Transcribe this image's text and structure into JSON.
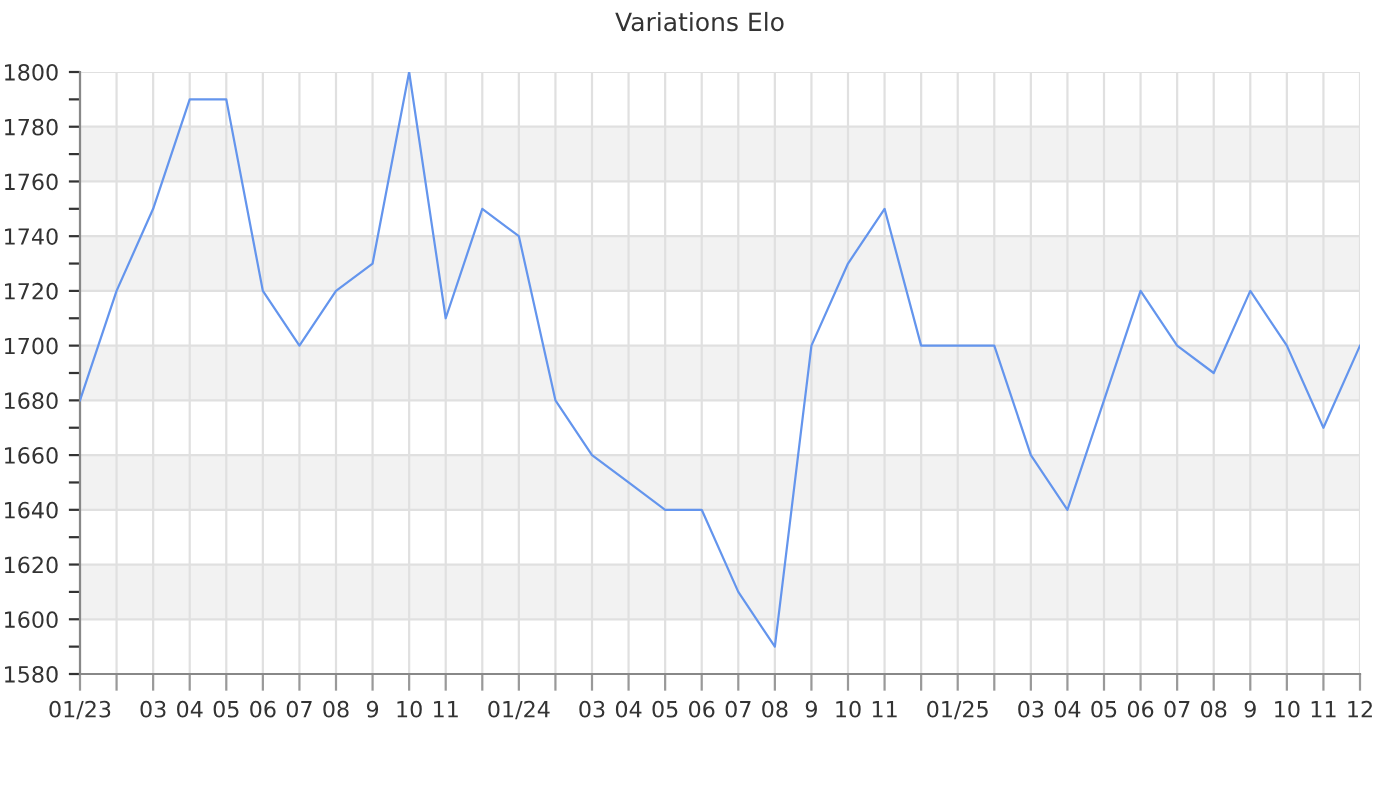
{
  "chart_data": {
    "type": "line",
    "title": "Variations Elo",
    "categories": [
      "01/23",
      null,
      "03",
      "04",
      "05",
      "06",
      "07",
      "08",
      "9",
      "10",
      "11",
      null,
      "01/24",
      null,
      "03",
      "04",
      "05",
      "06",
      "07",
      "08",
      "9",
      "10",
      "11",
      null,
      "01/25",
      null,
      "03",
      "04",
      "05",
      "06",
      "07",
      "08",
      "9",
      "10",
      "11",
      "12"
    ],
    "series": [
      {
        "color": "#6495ed",
        "values": [
          1680,
          1720,
          1750,
          1790,
          1790,
          1720,
          1700,
          1720,
          1730,
          1800,
          1710,
          1750,
          1740,
          1680,
          1660,
          1650,
          1640,
          1640,
          1610,
          1590,
          1700,
          1730,
          1750,
          1700,
          1700,
          1700,
          1660,
          1640,
          1680,
          1720,
          1700,
          1690,
          1720,
          1700,
          1670,
          1700
        ]
      }
    ],
    "ylim": [
      1580,
      1800
    ],
    "yticks": [
      1580,
      {
        "value": 1590,
        "label": null
      },
      1600,
      {
        "value": 1610,
        "label": null
      },
      1620,
      {
        "value": 1630,
        "label": null
      },
      1640,
      {
        "value": 1650,
        "label": null
      },
      1660,
      {
        "value": 1670,
        "label": null
      },
      1680,
      {
        "value": 1690,
        "label": null
      },
      1700,
      {
        "value": 1710,
        "label": null
      },
      1720,
      {
        "value": 1730,
        "label": null
      },
      1740,
      {
        "value": 1750,
        "label": null
      },
      1760,
      {
        "value": 1770,
        "label": null
      },
      1780,
      {
        "value": 1790,
        "label": null
      },
      1800
    ],
    "bands": [
      {
        "axis": "y",
        "from": 1600,
        "to": 1620,
        "color": "#f2f2f2"
      },
      {
        "axis": "y",
        "from": 1640,
        "to": 1660,
        "color": "#f2f2f2"
      },
      {
        "axis": "y",
        "from": 1680,
        "to": 1700,
        "color": "#f2f2f2"
      },
      {
        "axis": "y",
        "from": 1720,
        "to": 1740,
        "color": "#f2f2f2"
      },
      {
        "axis": "y",
        "from": 1760,
        "to": 1780,
        "color": "#f2f2f2"
      }
    ],
    "grid": true,
    "marker": "none",
    "line_style": "solid"
  }
}
